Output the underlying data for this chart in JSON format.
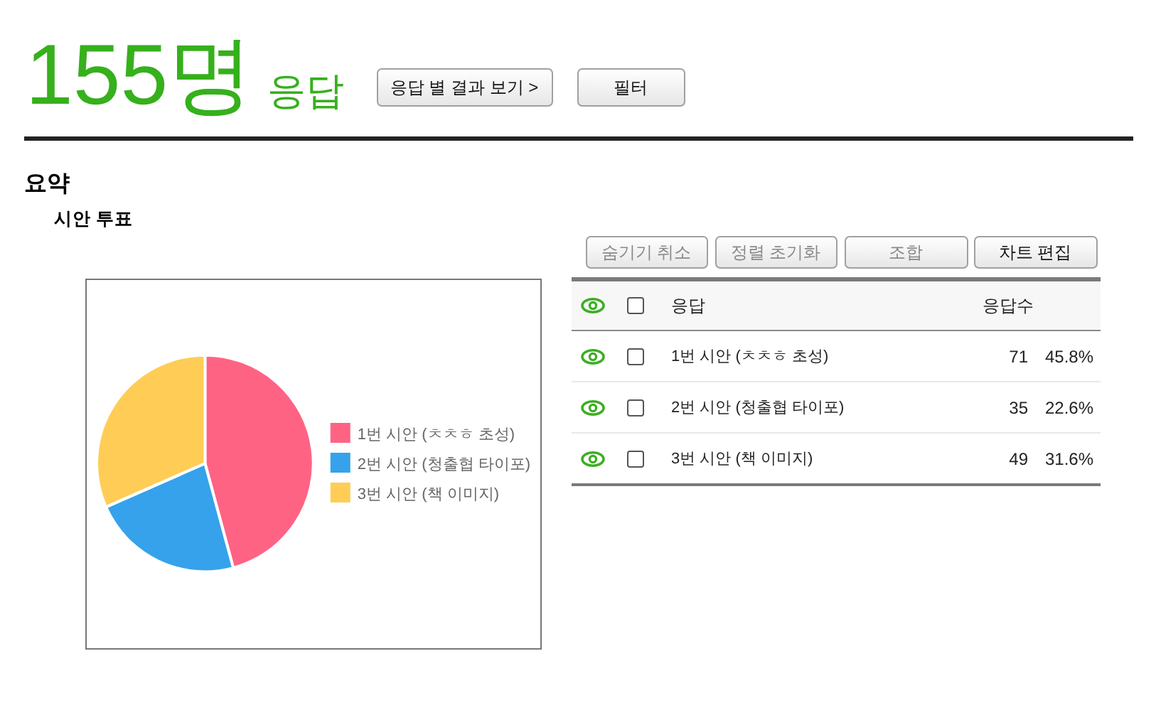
{
  "chart_data": {
    "type": "pie",
    "title": "시안 투표",
    "categories": [
      "1번 시안 (ㅊㅊㅎ 초성)",
      "2번 시안 (청출협 타이포)",
      "3번 시안 (책 이미지)"
    ],
    "values": [
      45.8,
      22.6,
      31.6
    ],
    "colors": [
      "#ff6384",
      "#36a2eb",
      "#ffcd56"
    ],
    "legend": "right",
    "annotations": [
      "155명",
      "응답",
      "응답 별 결과 보기 >",
      "필터",
      "요약",
      "숨기기 취소",
      "정렬 초기화",
      "조합",
      "차트 편집",
      "응답",
      "응답수",
      "71",
      "45.8%",
      "35",
      "22.6%",
      "49",
      "31.6%"
    ]
  }
}
